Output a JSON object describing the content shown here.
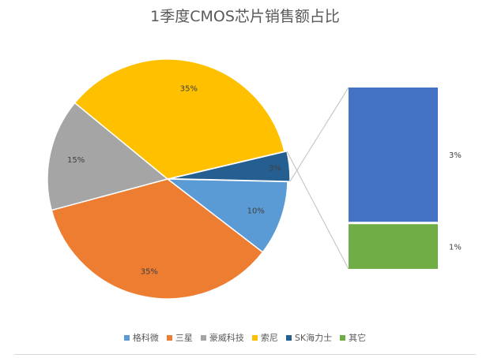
{
  "chart_data": {
    "type": "pie",
    "subtype": "pie-of-bar",
    "title": "1季度CMOS芯片销售额占比",
    "categories": [
      "格科微",
      "三星",
      "豪威科技",
      "索尼",
      "SK海力士",
      "其它"
    ],
    "values": [
      10,
      35,
      15,
      35,
      3,
      1
    ],
    "value_labels": [
      "10%",
      "35%",
      "15%",
      "35%",
      "3%",
      "1%"
    ],
    "colors": [
      "#5B9BD5",
      "#ED7D31",
      "#A5A5A5",
      "#FFC000",
      "#255E91",
      "#70AD47"
    ],
    "bar_colors": [
      "#4472C4",
      "#70AD47"
    ],
    "pie_slices": [
      "格科微",
      "三星",
      "豪威科技",
      "索尼",
      "其他"
    ],
    "pie_other_value": 4,
    "bar_breakout": [
      "SK海力士",
      "其它"
    ],
    "legend_position": "bottom"
  }
}
